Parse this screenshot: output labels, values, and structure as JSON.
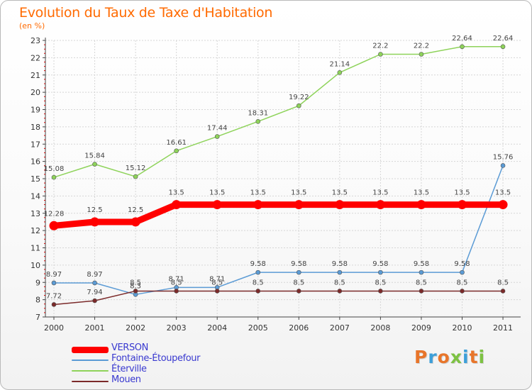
{
  "header": {
    "title": "Evolution du Taux de Taxe d'Habitation",
    "subtitle": "(en %)"
  },
  "logo": {
    "text": "Proxiti",
    "colors": [
      "#e8752a",
      "#3c9fd9",
      "#e8752a",
      "#7dc243",
      "#3c9fd9",
      "#e8752a",
      "#7dc243"
    ]
  },
  "chart_data": {
    "type": "line",
    "title": "Evolution du Taux de Taxe d'Habitation",
    "subtitle": "(en %)",
    "xlabel": "",
    "ylabel": "",
    "x": [
      "2000",
      "2001",
      "2002",
      "2003",
      "2004",
      "2005",
      "2006",
      "2007",
      "2008",
      "2009",
      "2010",
      "2011"
    ],
    "ylim": [
      7,
      23
    ],
    "yticks": [
      7,
      8,
      9,
      10,
      11,
      12,
      13,
      14,
      15,
      16,
      17,
      18,
      19,
      20,
      21,
      22,
      23
    ],
    "grid": true,
    "legend_position": "bottom-left",
    "series": [
      {
        "name": "VERSON",
        "color": "#ff0000",
        "values": [
          12.28,
          12.5,
          12.5,
          13.5,
          13.5,
          13.5,
          13.5,
          13.5,
          13.5,
          13.5,
          13.5,
          13.5
        ],
        "labels": [
          "12.28",
          "12.5",
          "12.5",
          "13.5",
          "13.5",
          "13.5",
          "13.5",
          "13.5",
          "13.5",
          "13.5",
          "13.5",
          "13.5"
        ]
      },
      {
        "name": "Fontaine-Étoupefour",
        "color": "#5b9bd5",
        "values": [
          8.97,
          8.97,
          8.3,
          8.71,
          8.71,
          9.58,
          9.58,
          9.58,
          9.58,
          9.58,
          9.58,
          15.76
        ],
        "labels": [
          "8.97",
          "8.97",
          "8.3",
          "8.71",
          "8.71",
          "9.58",
          "9.58",
          "9.58",
          "9.58",
          "9.58",
          "9.58",
          "15.76"
        ]
      },
      {
        "name": "Éterville",
        "color": "#8ed35a",
        "values": [
          15.08,
          15.84,
          15.12,
          16.61,
          17.44,
          18.31,
          19.22,
          21.14,
          22.2,
          22.2,
          22.64,
          22.64
        ],
        "labels": [
          "15.08",
          "15.84",
          "15.12",
          "16.61",
          "17.44",
          "18.31",
          "19.22",
          "21.14",
          "22.2",
          "22.2",
          "22.64",
          "22.64"
        ]
      },
      {
        "name": "Mouen",
        "color": "#7b2a2a",
        "values": [
          7.72,
          7.94,
          8.5,
          8.5,
          8.5,
          8.5,
          8.5,
          8.5,
          8.5,
          8.5,
          8.5,
          8.5
        ],
        "labels": [
          "7.72",
          "7.94",
          "8.5",
          "8.5",
          "8.5",
          "8.5",
          "8.5",
          "8.5",
          "8.5",
          "8.5",
          "8.5",
          "8.5"
        ]
      }
    ]
  }
}
